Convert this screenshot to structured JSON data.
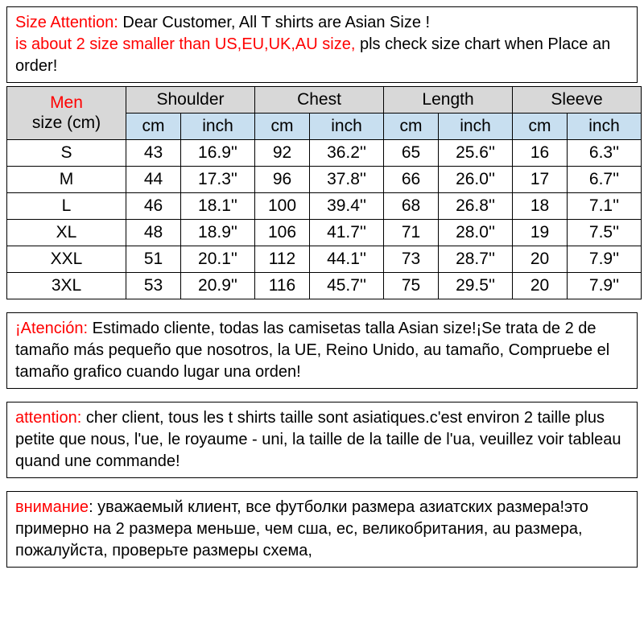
{
  "notice_en": {
    "red1": "Size Attention: ",
    "black1": "Dear Customer, All T shirts are  Asian Size !",
    "red2": "is about 2 size smaller than US,EU,UK,AU size, ",
    "black2": "pls check size chart when Place an order!"
  },
  "table": {
    "men": "Men",
    "size_unit": "size (cm)",
    "groups": [
      "Shoulder",
      "Chest",
      "Length",
      "Sleeve"
    ],
    "subs": [
      "cm",
      "inch"
    ],
    "rows": [
      {
        "size": "S",
        "vals": [
          "43",
          "16.9''",
          "92",
          "36.2''",
          "65",
          "25.6''",
          "16",
          "6.3''"
        ]
      },
      {
        "size": "M",
        "vals": [
          "44",
          "17.3''",
          "96",
          "37.8''",
          "66",
          "26.0''",
          "17",
          "6.7''"
        ]
      },
      {
        "size": "L",
        "vals": [
          "46",
          "18.1''",
          "100",
          "39.4''",
          "68",
          "26.8''",
          "18",
          "7.1''"
        ]
      },
      {
        "size": "XL",
        "vals": [
          "48",
          "18.9''",
          "106",
          "41.7''",
          "71",
          "28.0''",
          "19",
          "7.5''"
        ]
      },
      {
        "size": "XXL",
        "vals": [
          "51",
          "20.1''",
          "112",
          "44.1''",
          "73",
          "28.7''",
          "20",
          "7.9''"
        ]
      },
      {
        "size": "3XL",
        "vals": [
          "53",
          "20.9''",
          "116",
          "45.7''",
          "75",
          "29.5''",
          "20",
          "7.9''"
        ]
      }
    ]
  },
  "notice_es": {
    "red": "¡Atención: ",
    "black": "Estimado cliente, todas las camisetas talla Asian size!¡Se trata de 2 de tamaño más pequeño que nosotros, la UE, Reino Unido, au tamaño, Compruebe el tamaño grafico cuando lugar una orden!"
  },
  "notice_fr": {
    "red": "attention: ",
    "black": "cher client, tous les t shirts taille sont asiatiques.c'est environ 2 taille plus petite que nous, l'ue, le royaume - uni, la taille de la taille de l'ua, veuillez voir tableau quand une commande!"
  },
  "notice_ru": {
    "red": "внимание",
    "black": ": уважаемый клиент, все футболки размера азиатских размера!это примерно на 2 размера меньше, чем сша, ес, великобритания, au размера, пожалуйста, проверьте размеры схема,"
  },
  "colors": {
    "border": "#000000",
    "red": "#ff0000",
    "grey_header": "#d8d8d8",
    "blue_header": "#c8dff0",
    "background": "#ffffff"
  }
}
